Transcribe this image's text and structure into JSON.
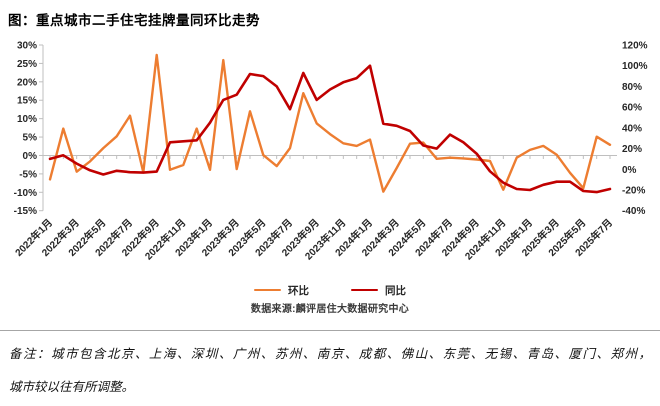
{
  "title": "图：重点城市二手住宅挂牌量同环比走势",
  "chart_data": {
    "type": "line",
    "title": "重点城市二手住宅挂牌量同环比走势",
    "x": [
      "2022年1月",
      "2022年2月",
      "2022年3月",
      "2022年4月",
      "2022年5月",
      "2022年6月",
      "2022年7月",
      "2022年8月",
      "2022年9月",
      "2022年10月",
      "2022年11月",
      "2022年12月",
      "2023年1月",
      "2023年2月",
      "2023年3月",
      "2023年4月",
      "2023年5月",
      "2023年6月",
      "2023年7月",
      "2023年8月",
      "2023年9月",
      "2023年10月",
      "2023年11月",
      "2023年12月",
      "2024年1月",
      "2024年2月",
      "2024年3月",
      "2024年4月",
      "2024年5月",
      "2024年6月",
      "2024年7月",
      "2024年8月",
      "2024年9月",
      "2024年10月",
      "2024年11月",
      "2024年12月",
      "2025年1月",
      "2025年2月",
      "2025年3月",
      "2025年4月",
      "2025年5月",
      "2025年6月",
      "2025年7月"
    ],
    "x_label_interval": 2,
    "series": [
      {
        "name": "环比",
        "axis": "left",
        "color": "#ED7D31",
        "values": [
          -6.5,
          7.3,
          -4.4,
          -1.6,
          2.0,
          5.2,
          10.8,
          -4.6,
          27.3,
          -3.9,
          -2.6,
          7.3,
          -3.9,
          25.9,
          -3.7,
          12.0,
          0.1,
          -2.9,
          2.0,
          16.9,
          8.7,
          5.8,
          3.3,
          2.6,
          4.3,
          -9.8,
          -3.4,
          3.2,
          3.5,
          -0.9,
          -0.6,
          -0.8,
          -1.1,
          -1.5,
          -9.3,
          -0.6,
          1.5,
          2.6,
          0.2,
          -4.7,
          -8.9,
          5.1,
          2.9
        ]
      },
      {
        "name": "同比",
        "axis": "right",
        "color": "#C00000",
        "values": [
          10,
          13.5,
          5.5,
          -1,
          -5,
          -1.5,
          -2.8,
          -3.2,
          -2.2,
          26,
          27,
          28,
          45,
          67,
          72,
          92,
          90,
          80,
          58,
          93,
          67,
          77,
          84,
          88,
          100,
          44,
          42,
          37,
          23,
          20,
          33.5,
          26,
          15,
          -2,
          -13,
          -19,
          -20,
          -15,
          -12,
          -12,
          -21,
          -22,
          -19
        ]
      }
    ],
    "left_axis": {
      "min": -15,
      "max": 30,
      "tick_values": [
        30,
        25,
        20,
        15,
        10,
        5,
        0,
        -5,
        -10,
        -15
      ],
      "tick_labels": [
        "30%",
        "25%",
        "20%",
        "15%",
        "10%",
        "5%",
        "0%",
        "-5%",
        "-10%",
        "-15%"
      ]
    },
    "right_axis": {
      "min": -40,
      "max": 120,
      "tick_values": [
        120,
        100,
        80,
        60,
        40,
        20,
        0,
        -20,
        -40
      ],
      "tick_labels": [
        "120%",
        "100%",
        "80%",
        "60%",
        "40%",
        "20%",
        "0%",
        "-20%",
        "-40%"
      ]
    },
    "grid": false,
    "legend_position": "bottom",
    "axis_color": "#bfbfbf",
    "label_color": "#262626"
  },
  "source": "数据来源:麟评居住大数据研究中心",
  "note": {
    "line1": "备注：城市包含北京、上海、深圳、广州、苏州、南京、成都、佛山、东莞、无锡、青岛、厦门、郑州，",
    "line2": "城市较以往有所调整。"
  }
}
